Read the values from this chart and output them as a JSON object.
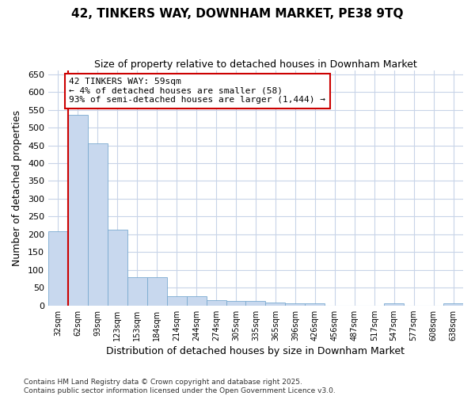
{
  "title": "42, TINKERS WAY, DOWNHAM MARKET, PE38 9TQ",
  "subtitle": "Size of property relative to detached houses in Downham Market",
  "xlabel": "Distribution of detached houses by size in Downham Market",
  "ylabel": "Number of detached properties",
  "categories": [
    "32sqm",
    "62sqm",
    "93sqm",
    "123sqm",
    "153sqm",
    "184sqm",
    "214sqm",
    "244sqm",
    "274sqm",
    "305sqm",
    "335sqm",
    "365sqm",
    "396sqm",
    "426sqm",
    "456sqm",
    "487sqm",
    "517sqm",
    "547sqm",
    "577sqm",
    "608sqm",
    "638sqm"
  ],
  "values": [
    208,
    535,
    455,
    213,
    80,
    80,
    27,
    27,
    15,
    13,
    12,
    8,
    5,
    5,
    0,
    0,
    0,
    5,
    0,
    0,
    5
  ],
  "bar_color": "#c8d8ee",
  "bar_edge_color": "#7aaad0",
  "bg_color": "#ffffff",
  "grid_color": "#c8d4e8",
  "marker_line_color": "#cc0000",
  "annotation_text": "42 TINKERS WAY: 59sqm\n← 4% of detached houses are smaller (58)\n93% of semi-detached houses are larger (1,444) →",
  "annotation_box_color": "#cc0000",
  "footer_text": "Contains HM Land Registry data © Crown copyright and database right 2025.\nContains public sector information licensed under the Open Government Licence v3.0.",
  "ylim": [
    0,
    660
  ],
  "yticks": [
    0,
    50,
    100,
    150,
    200,
    250,
    300,
    350,
    400,
    450,
    500,
    550,
    600,
    650
  ]
}
